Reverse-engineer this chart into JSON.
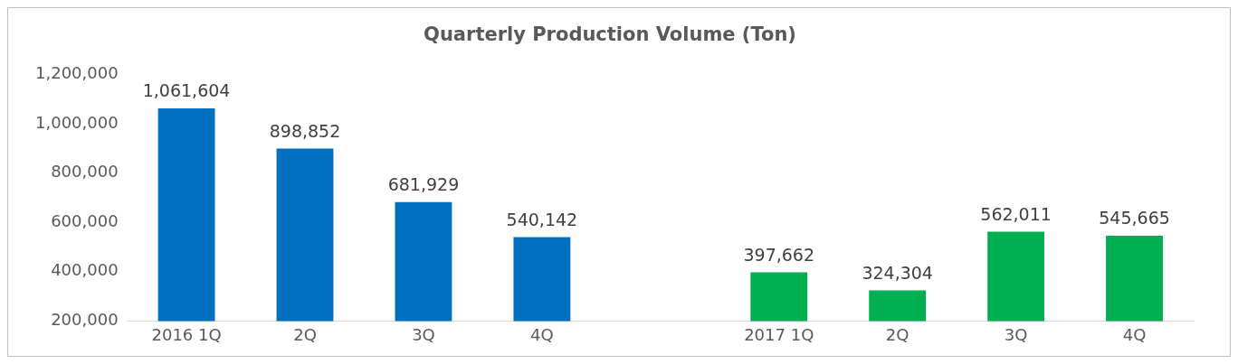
{
  "chart_data": {
    "type": "bar",
    "title": "Quarterly Production Volume (Ton)",
    "categories": [
      "2016 1Q",
      "2Q",
      "3Q",
      "4Q",
      null,
      "2017 1Q",
      "2Q",
      "3Q",
      "4Q"
    ],
    "series": [
      {
        "values": [
          1061604,
          898852,
          681929,
          540142,
          null,
          397662,
          324304,
          562011,
          545665
        ],
        "value_labels": [
          "1,061,604",
          "898,852",
          "681,929",
          "540,142",
          null,
          "397,662",
          "324,304",
          "562,011",
          "545,665"
        ],
        "colors": [
          "#0070c0",
          "#0070c0",
          "#0070c0",
          "#0070c0",
          "#0070c0",
          "#00b050",
          "#00b050",
          "#00b050",
          "#00b050"
        ]
      }
    ],
    "ylim": [
      200000,
      1200000
    ],
    "yticks": [
      {
        "value": 200000,
        "label": "200,000"
      },
      {
        "value": 400000,
        "label": "400,000"
      },
      {
        "value": 600000,
        "label": "600,000"
      },
      {
        "value": 800000,
        "label": "800,000"
      },
      {
        "value": 1000000,
        "label": "1,000,000"
      },
      {
        "value": 1200000,
        "label": "1,200,000"
      }
    ],
    "grid": false,
    "legend": false
  }
}
